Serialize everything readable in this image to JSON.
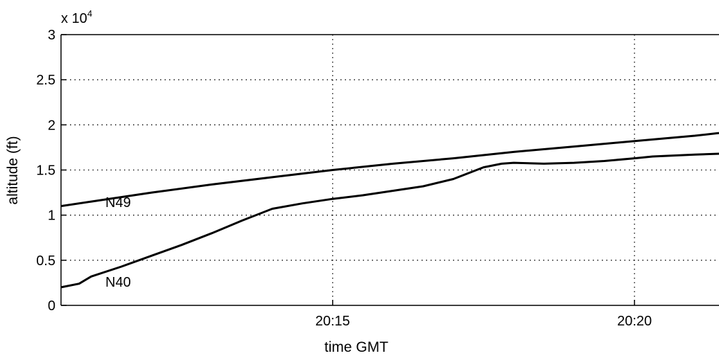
{
  "chart_data": {
    "type": "line",
    "xlabel": "time GMT",
    "ylabel": "altitude (ft)",
    "y_multiplier_label": "x 10",
    "y_multiplier_exponent": "4",
    "x_unit": "minutes after 20:00 GMT",
    "xlim": [
      10.5,
      21.4
    ],
    "ylim": [
      0,
      3
    ],
    "x_ticks": [
      15,
      20
    ],
    "x_tick_labels": [
      "20:15",
      "20:20"
    ],
    "y_ticks": [
      0,
      0.5,
      1,
      1.5,
      2,
      2.5,
      3
    ],
    "y_tick_labels": [
      "0",
      "0.5",
      "1",
      "1.5",
      "2",
      "2.5",
      "3"
    ],
    "grid": true,
    "series": [
      {
        "name": "N49",
        "x": [
          10.5,
          11,
          12,
          13,
          14,
          15,
          16,
          17,
          18,
          19,
          20,
          21,
          21.4
        ],
        "y": [
          1.1,
          1.15,
          1.25,
          1.34,
          1.42,
          1.5,
          1.57,
          1.63,
          1.7,
          1.76,
          1.82,
          1.88,
          1.91
        ]
      },
      {
        "name": "N40",
        "x": [
          10.5,
          10.8,
          11,
          11.5,
          12,
          12.5,
          13,
          13.5,
          14,
          14.5,
          15,
          15.5,
          16,
          16.5,
          17,
          17.5,
          17.8,
          18,
          18.5,
          19,
          19.5,
          20,
          20.3,
          21,
          21.4
        ],
        "y": [
          0.2,
          0.24,
          0.32,
          0.43,
          0.55,
          0.67,
          0.8,
          0.94,
          1.07,
          1.13,
          1.18,
          1.22,
          1.27,
          1.32,
          1.4,
          1.53,
          1.57,
          1.58,
          1.57,
          1.58,
          1.6,
          1.63,
          1.65,
          1.67,
          1.68
        ]
      }
    ]
  }
}
